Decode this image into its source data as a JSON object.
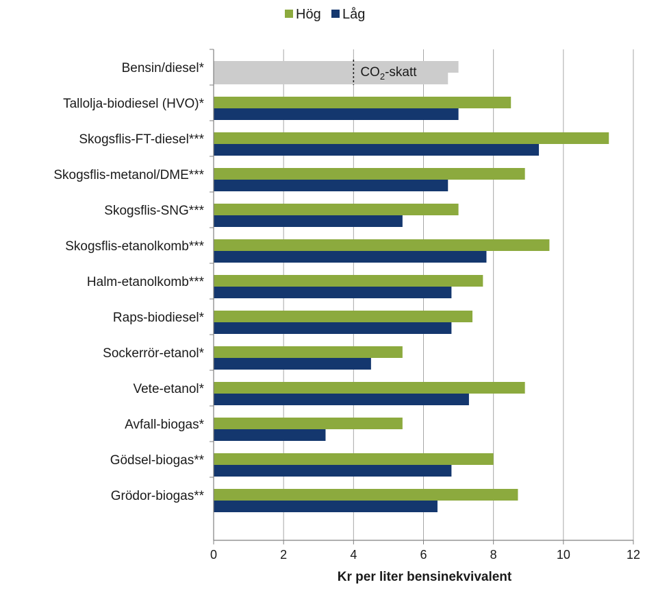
{
  "chart_data": {
    "type": "bar",
    "orientation": "horizontal",
    "title": "",
    "xlabel": "Kr per liter bensinekvivalent",
    "ylabel": "",
    "xlim": [
      0,
      12
    ],
    "xticks": [
      0,
      2,
      4,
      6,
      8,
      10,
      12
    ],
    "grid": true,
    "legend_position": "top-center",
    "categories": [
      "Bensin/diesel*",
      "Tallolja-biodiesel (HVO)*",
      "Skogsflis-FT-diesel***",
      "Skogsflis-metanol/DME***",
      "Skogsflis-SNG***",
      "Skogsflis-etanolkomb***",
      "Halm-etanolkomb***",
      "Raps-biodiesel*",
      "Sockerrör-etanol*",
      "Vete-etanol*",
      "Avfall-biogas*",
      "Gödsel-biogas**",
      "Grödor-biogas**"
    ],
    "series": [
      {
        "name": "Hög",
        "color": "#8caa3e",
        "values": [
          7.0,
          8.5,
          11.3,
          8.9,
          7.0,
          9.6,
          7.7,
          7.4,
          5.4,
          8.9,
          5.4,
          8.0,
          8.7
        ]
      },
      {
        "name": "Låg",
        "color": "#14376e",
        "values": [
          6.7,
          7.0,
          9.3,
          6.7,
          5.4,
          7.8,
          6.8,
          6.8,
          4.5,
          7.3,
          3.2,
          6.8,
          6.4
        ]
      }
    ],
    "reference_bar": {
      "category": "Bensin/diesel*",
      "color": "#cccccc",
      "marker_value": 4.0,
      "annotation_prefix": "CO",
      "annotation_sub": "2",
      "annotation_suffix": "-skatt"
    }
  }
}
